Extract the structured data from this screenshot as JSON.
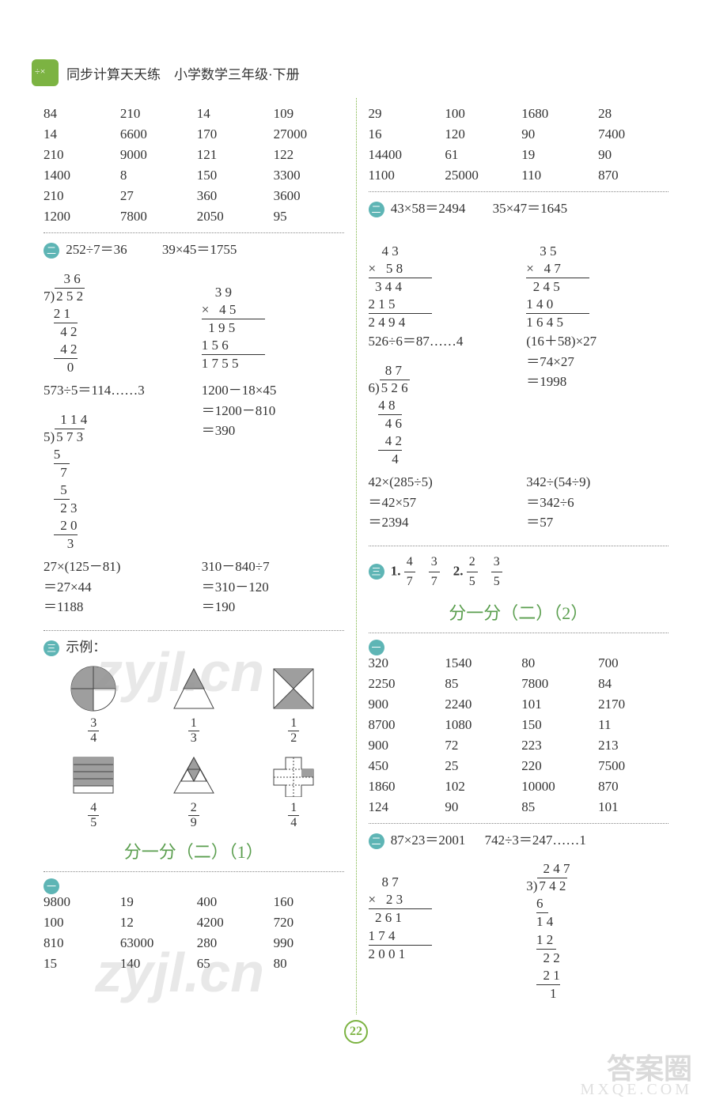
{
  "header": {
    "title": "同步计算天天练　小学数学三年级·下册"
  },
  "page_number": "22",
  "watermarks": {
    "wm1": "zyjl.cn",
    "wm2": "zyjl.cn",
    "bottom1": "答案圈",
    "bottom2": "MXQE.COM"
  },
  "colors": {
    "accent": "#7cb342",
    "badge": "#5eb5b5",
    "title": "#5a9e4e",
    "text": "#333333",
    "shape_fill": "#9e9e9e",
    "shape_stroke": "#444444"
  },
  "left": {
    "grid1": [
      [
        "84",
        "210",
        "14",
        "109"
      ],
      [
        "14",
        "6600",
        "170",
        "27000"
      ],
      [
        "210",
        "9000",
        "121",
        "122"
      ],
      [
        "1400",
        "8",
        "150",
        "3300"
      ],
      [
        "210",
        "27",
        "360",
        "3600"
      ],
      [
        "1200",
        "7800",
        "2050",
        "95"
      ]
    ],
    "sec2": {
      "eq1": "252÷7＝36",
      "eq2": "39×45＝1755",
      "div1": {
        "divisor": "7",
        "dividend": "2 5 2",
        "quotient": "3 6",
        "lines": [
          "2 1",
          "  4 2",
          "  4 2",
          "    0"
        ]
      },
      "mult1": {
        "a": "    3 9",
        "b": "×   4 5",
        "p1": "  1 9 5",
        "p2": "1 5 6",
        "res": "1 7 5 5"
      },
      "eq3": "573÷5＝114……3",
      "eq4": "1200－18×45",
      "eq4b": "＝1200－810",
      "eq4c": "＝390",
      "div2": {
        "divisor": "5",
        "dividend": "5 7 3",
        "quotient": "1 1 4",
        "lines": [
          "5",
          "  7",
          "  5",
          "  2 3",
          "  2 0",
          "    3"
        ]
      },
      "eq5": "27×(125－81)",
      "eq5b": "＝27×44",
      "eq5c": "＝1188",
      "eq6": "310－840÷7",
      "eq6b": "＝310－120",
      "eq6c": "＝190"
    },
    "sec3_label": "示例：",
    "shapes": [
      {
        "n": "3",
        "d": "4"
      },
      {
        "n": "1",
        "d": "3"
      },
      {
        "n": "1",
        "d": "2"
      },
      {
        "n": "4",
        "d": "5"
      },
      {
        "n": "2",
        "d": "9"
      },
      {
        "n": "1",
        "d": "4"
      }
    ],
    "title1": "分一分（二）（1）",
    "grid2": [
      [
        "9800",
        "19",
        "400",
        "160"
      ],
      [
        "100",
        "12",
        "4200",
        "720"
      ],
      [
        "810",
        "63000",
        "280",
        "990"
      ],
      [
        "15",
        "140",
        "65",
        "80"
      ]
    ]
  },
  "right": {
    "grid1": [
      [
        "29",
        "100",
        "1680",
        "28"
      ],
      [
        "16",
        "120",
        "90",
        "7400"
      ],
      [
        "14400",
        "61",
        "19",
        "90"
      ],
      [
        "1100",
        "25000",
        "110",
        "870"
      ]
    ],
    "sec2": {
      "eq1": "43×58＝2494",
      "eq2": "35×47＝1645",
      "mult1": {
        "a": "    4 3",
        "b": "×   5 8",
        "p1": "  3 4 4",
        "p2": "2 1 5",
        "res": "2 4 9 4"
      },
      "mult2": {
        "a": "    3 5",
        "b": "×   4 7",
        "p1": "  2 4 5",
        "p2": "1 4 0",
        "res": "1 6 4 5"
      },
      "eq3": "526÷6＝87……4",
      "eq4": "(16＋58)×27",
      "eq4b": "＝74×27",
      "eq4c": "＝1998",
      "div1": {
        "divisor": "6",
        "dividend": "5 2 6",
        "quotient": "8 7",
        "lines": [
          "4 8",
          "  4 6",
          "  4 2",
          "    4"
        ]
      },
      "eq5": "42×(285÷5)",
      "eq5b": "＝42×57",
      "eq5c": "＝2394",
      "eq6": "342÷(54÷9)",
      "eq6b": "＝342÷6",
      "eq6c": "＝57"
    },
    "sec3": {
      "l1": "1.",
      "f1_n": "4",
      "f1_d": "7",
      "f2_n": "3",
      "f2_d": "7",
      "l2": "2.",
      "f3_n": "2",
      "f3_d": "5",
      "f4_n": "3",
      "f4_d": "5"
    },
    "title2": "分一分（二）（2）",
    "grid2": [
      [
        "320",
        "1540",
        "80",
        "700"
      ],
      [
        "2250",
        "85",
        "7800",
        "84"
      ],
      [
        "900",
        "2240",
        "101",
        "2170"
      ],
      [
        "8700",
        "1080",
        "150",
        "11"
      ],
      [
        "900",
        "72",
        "223",
        "213"
      ],
      [
        "450",
        "25",
        "220",
        "7500"
      ],
      [
        "1860",
        "102",
        "10000",
        "870"
      ],
      [
        "124",
        "90",
        "85",
        "101"
      ]
    ],
    "sec4": {
      "eq1": "87×23＝2001",
      "eq2": "742÷3＝247……1",
      "mult1": {
        "a": "    8 7",
        "b": "×   2 3",
        "p1": "  2 6 1",
        "p2": "1 7 4",
        "res": "2 0 0 1"
      },
      "div1": {
        "divisor": "3",
        "dividend": "7 4 2",
        "quotient": "2 4 7",
        "lines": [
          "6",
          "1 4",
          "1 2",
          "  2 2",
          "  2 1",
          "    1"
        ]
      }
    }
  }
}
